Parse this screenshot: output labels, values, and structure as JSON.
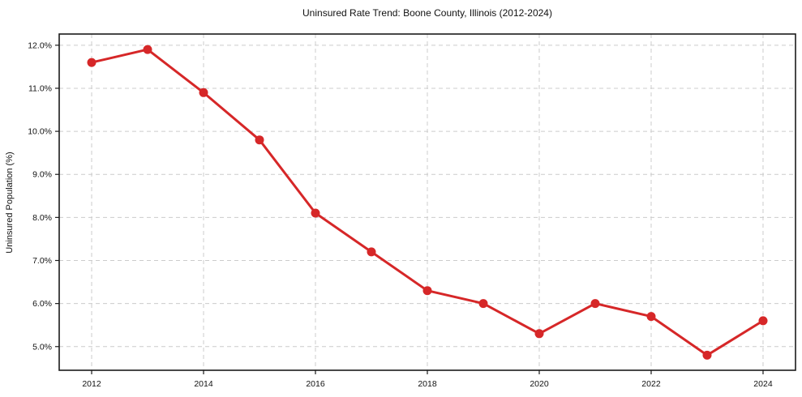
{
  "chart_data": {
    "type": "line",
    "title": "Uninsured Rate Trend: Boone County, Illinois (2012-2024)",
    "xlabel": "",
    "ylabel": "Uninsured Population (%)",
    "x": [
      2012,
      2013,
      2014,
      2015,
      2016,
      2017,
      2018,
      2019,
      2020,
      2021,
      2022,
      2023,
      2024
    ],
    "values": [
      11.6,
      11.9,
      10.9,
      9.8,
      8.1,
      7.2,
      6.3,
      6.0,
      5.3,
      6.0,
      5.7,
      4.8,
      5.6
    ],
    "series_name": "Uninsured Rate",
    "xlim": [
      2011.42,
      2024.58
    ],
    "ylim": [
      4.45,
      12.26
    ],
    "x_ticks": [
      2012,
      2014,
      2016,
      2018,
      2020,
      2022,
      2024
    ],
    "x_tick_labels": [
      "2012",
      "2014",
      "2016",
      "2018",
      "2020",
      "2022",
      "2024"
    ],
    "y_ticks": [
      5,
      6,
      7,
      8,
      9,
      10,
      11,
      12
    ],
    "y_tick_labels": [
      "5.0%",
      "6.0%",
      "7.0%",
      "8.0%",
      "9.0%",
      "10.0%",
      "11.0%",
      "12.0%"
    ],
    "grid": "both-dashed",
    "legend": "none",
    "colors": {
      "line": "#d62728",
      "marker": "#d62728",
      "grid": "#cccccc",
      "spine": "#1a1a1a",
      "text": "#111111",
      "background": "#ffffff"
    }
  }
}
